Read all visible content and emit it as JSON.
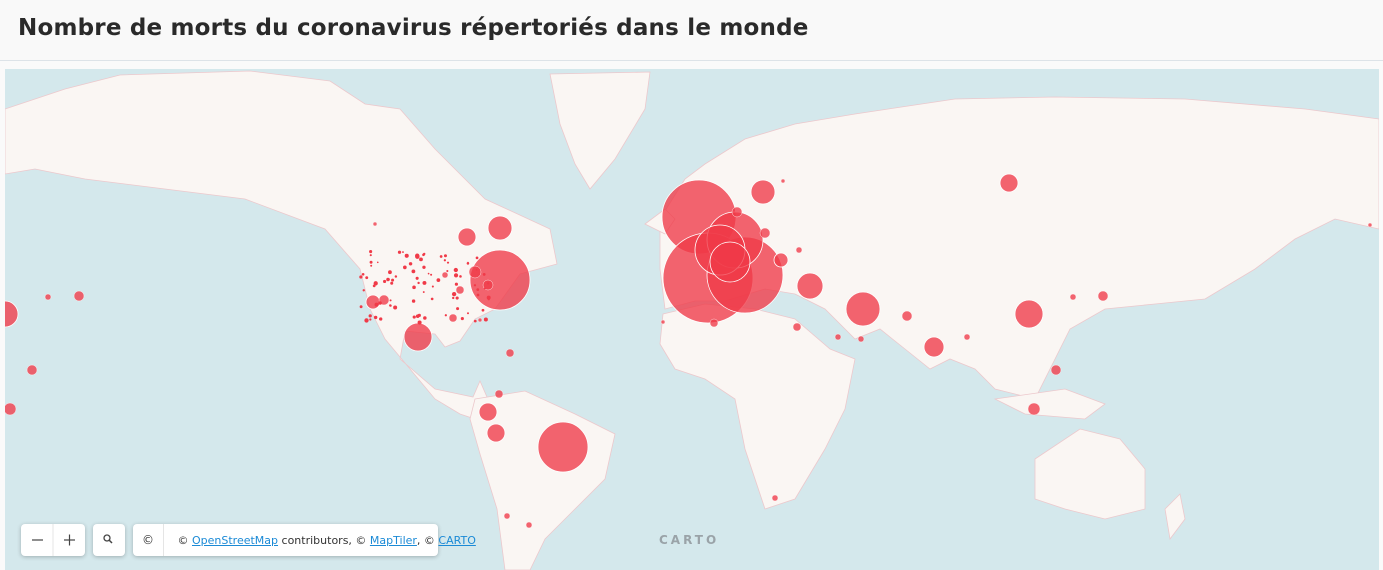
{
  "header": {
    "title": "Nombre de morts du coronavirus répertoriés dans le monde"
  },
  "attribution": {
    "info": "©",
    "parts": [
      "©",
      "OpenStreetMap",
      "contributors, ©",
      "MapTiler",
      ", ©",
      "CARTO"
    ]
  },
  "logo": "CARTO"
}
